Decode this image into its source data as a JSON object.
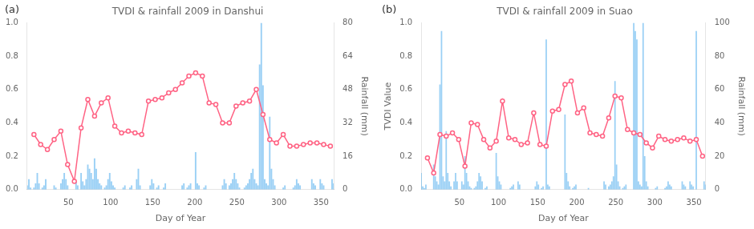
{
  "chart_data": [
    {
      "type": "bar",
      "title": "TVDI & rainfall 2009 in Danshui",
      "annotations": [
        "(a)"
      ],
      "xlabel": "Day of Year",
      "y2label": "Rainfall (mm)",
      "xlim": [
        1,
        365
      ],
      "xticks": [
        50,
        100,
        150,
        200,
        250,
        300,
        350
      ],
      "ylim": [
        0,
        1
      ],
      "yticks": [
        {
          "value": 0,
          "label": "0.0"
        },
        0.2,
        0.4,
        0.6,
        0.8,
        {
          "value": 1.0,
          "label": "1.0"
        }
      ],
      "y2lim": [
        0,
        80
      ],
      "y2ticks": [
        0,
        16,
        32,
        48,
        64,
        80
      ],
      "grid": false,
      "series": [
        {
          "type": "bar",
          "axis": "y2",
          "x": [
            1,
            3,
            5,
            7,
            9,
            11,
            13,
            15,
            17,
            19,
            21,
            23,
            25,
            27,
            29,
            31,
            33,
            35,
            37,
            39,
            41,
            43,
            45,
            47,
            49,
            51,
            53,
            55,
            57,
            59,
            61,
            63,
            65,
            67,
            69,
            71,
            73,
            75,
            77,
            79,
            81,
            83,
            85,
            87,
            89,
            91,
            93,
            95,
            97,
            99,
            101,
            103,
            105,
            107,
            109,
            111,
            113,
            115,
            117,
            119,
            121,
            123,
            125,
            127,
            129,
            131,
            133,
            135,
            137,
            139,
            141,
            143,
            145,
            147,
            149,
            151,
            153,
            155,
            157,
            159,
            161,
            163,
            165,
            167,
            169,
            171,
            173,
            175,
            177,
            179,
            181,
            183,
            185,
            187,
            189,
            191,
            193,
            195,
            197,
            199,
            201,
            203,
            205,
            207,
            209,
            211,
            213,
            215,
            217,
            219,
            221,
            223,
            225,
            227,
            229,
            231,
            233,
            235,
            237,
            239,
            241,
            243,
            245,
            247,
            249,
            251,
            253,
            255,
            257,
            259,
            261,
            263,
            265,
            267,
            269,
            271,
            273,
            275,
            277,
            279,
            281,
            283,
            285,
            287,
            289,
            291,
            293,
            295,
            297,
            299,
            301,
            303,
            305,
            307,
            309,
            311,
            313,
            315,
            317,
            319,
            321,
            323,
            325,
            327,
            329,
            331,
            333,
            335,
            337,
            339,
            341,
            343,
            345,
            347,
            349,
            351,
            353,
            355,
            357,
            359,
            361,
            363,
            365
          ],
          "values": [
            2,
            5,
            1,
            0,
            1,
            3,
            8,
            3,
            0,
            1,
            2,
            5,
            0,
            0,
            0,
            0,
            2,
            1,
            0,
            0,
            3,
            5,
            8,
            5,
            2,
            0,
            0,
            0,
            0,
            4,
            2,
            0,
            8,
            4,
            2,
            5,
            12,
            10,
            8,
            5,
            15,
            10,
            5,
            3,
            2,
            0,
            1,
            2,
            5,
            8,
            4,
            2,
            1,
            0,
            0,
            0,
            0,
            1,
            2,
            0,
            0,
            1,
            2,
            0,
            0,
            5,
            10,
            2,
            0,
            0,
            0,
            0,
            0,
            2,
            5,
            3,
            0,
            1,
            2,
            0,
            0,
            1,
            3,
            0,
            0,
            0,
            0,
            0,
            0,
            0,
            0,
            0,
            2,
            3,
            0,
            1,
            2,
            3,
            0,
            0,
            18,
            3,
            2,
            0,
            0,
            1,
            2,
            0,
            0,
            0,
            0,
            0,
            0,
            0,
            0,
            0,
            2,
            5,
            3,
            0,
            2,
            3,
            5,
            8,
            5,
            3,
            1,
            0,
            0,
            1,
            2,
            3,
            5,
            8,
            10,
            5,
            3,
            2,
            60,
            80,
            50,
            5,
            3,
            2,
            35,
            10,
            5,
            2,
            0,
            0,
            0,
            0,
            1,
            2,
            0,
            0,
            0,
            0,
            1,
            2,
            5,
            3,
            2,
            0,
            0,
            0,
            0,
            0,
            0,
            5,
            3,
            2,
            0,
            0,
            5,
            3,
            2,
            0,
            0,
            0,
            0,
            5,
            3
          ]
        },
        {
          "type": "line",
          "marker": "circle",
          "line_style": "solid",
          "x": [
            9,
            17,
            25,
            33,
            41,
            49,
            57,
            65,
            73,
            81,
            89,
            97,
            105,
            113,
            121,
            129,
            137,
            145,
            153,
            161,
            169,
            177,
            185,
            193,
            201,
            209,
            217,
            225,
            233,
            241,
            249,
            257,
            265,
            273,
            281,
            289,
            297,
            305,
            313,
            321,
            329,
            337,
            345,
            353,
            361
          ],
          "values": [
            0.33,
            0.27,
            0.24,
            0.3,
            0.35,
            0.15,
            0.05,
            0.37,
            0.54,
            0.44,
            0.52,
            0.55,
            0.38,
            0.34,
            0.35,
            0.34,
            0.33,
            0.53,
            0.54,
            0.55,
            0.58,
            0.6,
            0.64,
            0.68,
            0.7,
            0.68,
            0.52,
            0.51,
            0.4,
            0.4,
            0.5,
            0.52,
            0.53,
            0.6,
            0.45,
            0.3,
            0.28,
            0.33,
            0.26,
            0.26,
            0.27,
            0.28,
            0.28,
            0.27,
            0.26
          ]
        }
      ]
    },
    {
      "type": "bar",
      "title": "TVDI & rainfall 2009 in Suao",
      "annotations": [
        "(b)"
      ],
      "xlabel": "Day of Year",
      "ylabel": "TVDI Value",
      "y2label": "Rainfall (mm)",
      "xlim": [
        1,
        365
      ],
      "xticks": [
        50,
        100,
        150,
        200,
        250,
        300,
        350
      ],
      "ylim": [
        0,
        1
      ],
      "yticks": [
        {
          "value": 0,
          "label": "0.0"
        },
        0.2,
        0.4,
        0.6,
        0.8,
        {
          "value": 1.0,
          "label": "1.0"
        }
      ],
      "y2lim": [
        0,
        100
      ],
      "y2ticks": [
        0,
        20,
        40,
        60,
        80,
        100
      ],
      "grid": false,
      "series": [
        {
          "type": "bar",
          "axis": "y2",
          "x": [
            1,
            3,
            5,
            7,
            9,
            11,
            13,
            15,
            17,
            19,
            21,
            23,
            25,
            27,
            29,
            31,
            33,
            35,
            37,
            39,
            41,
            43,
            45,
            47,
            49,
            51,
            53,
            55,
            57,
            59,
            61,
            63,
            65,
            67,
            69,
            71,
            73,
            75,
            77,
            79,
            81,
            83,
            85,
            87,
            89,
            91,
            93,
            95,
            97,
            99,
            101,
            103,
            105,
            107,
            109,
            111,
            113,
            115,
            117,
            119,
            121,
            123,
            125,
            127,
            129,
            131,
            133,
            135,
            137,
            139,
            141,
            143,
            145,
            147,
            149,
            151,
            153,
            155,
            157,
            159,
            161,
            163,
            165,
            167,
            169,
            171,
            173,
            175,
            177,
            179,
            181,
            183,
            185,
            187,
            189,
            191,
            193,
            195,
            197,
            199,
            201,
            203,
            205,
            207,
            209,
            211,
            213,
            215,
            217,
            219,
            221,
            223,
            225,
            227,
            229,
            231,
            233,
            235,
            237,
            239,
            241,
            243,
            245,
            247,
            249,
            251,
            253,
            255,
            257,
            259,
            261,
            263,
            265,
            267,
            269,
            271,
            273,
            275,
            277,
            279,
            281,
            283,
            285,
            287,
            289,
            291,
            293,
            295,
            297,
            299,
            301,
            303,
            305,
            307,
            309,
            311,
            313,
            315,
            317,
            319,
            321,
            323,
            325,
            327,
            329,
            331,
            333,
            335,
            337,
            339,
            341,
            343,
            345,
            347,
            349,
            351,
            353,
            355,
            357,
            359,
            361,
            363,
            365
          ],
          "values": [
            10,
            2,
            1,
            3,
            0,
            0,
            0,
            0,
            15,
            8,
            5,
            3,
            63,
            95,
            8,
            5,
            35,
            10,
            5,
            2,
            0,
            5,
            10,
            5,
            0,
            0,
            5,
            3,
            20,
            10,
            5,
            2,
            1,
            0,
            1,
            2,
            5,
            10,
            8,
            5,
            0,
            1,
            2,
            0,
            0,
            0,
            0,
            0,
            22,
            8,
            5,
            3,
            0,
            0,
            0,
            0,
            0,
            1,
            2,
            3,
            0,
            0,
            5,
            3,
            0,
            0,
            0,
            0,
            0,
            0,
            0,
            0,
            0,
            2,
            5,
            3,
            0,
            1,
            2,
            0,
            90,
            3,
            2,
            0,
            0,
            0,
            0,
            0,
            0,
            0,
            0,
            0,
            45,
            10,
            5,
            2,
            0,
            1,
            2,
            3,
            0,
            0,
            0,
            0,
            0,
            0,
            0,
            1,
            0,
            0,
            0,
            0,
            0,
            0,
            0,
            0,
            0,
            5,
            3,
            0,
            2,
            3,
            5,
            8,
            65,
            15,
            5,
            2,
            0,
            1,
            2,
            3,
            0,
            0,
            0,
            0,
            100,
            95,
            90,
            5,
            3,
            2,
            100,
            20,
            5,
            2,
            0,
            0,
            0,
            0,
            1,
            2,
            0,
            0,
            0,
            0,
            1,
            2,
            5,
            3,
            2,
            0,
            0,
            0,
            0,
            0,
            0,
            5,
            3,
            2,
            0,
            0,
            5,
            3,
            2,
            0,
            95,
            0,
            0,
            0,
            0,
            5,
            3
          ]
        },
        {
          "type": "line",
          "marker": "circle",
          "line_style": "solid",
          "x": [
            9,
            17,
            25,
            33,
            41,
            49,
            57,
            65,
            73,
            81,
            89,
            97,
            105,
            113,
            121,
            129,
            137,
            145,
            153,
            161,
            169,
            177,
            185,
            193,
            201,
            209,
            217,
            225,
            233,
            241,
            249,
            257,
            265,
            273,
            281,
            289,
            297,
            305,
            313,
            321,
            329,
            337,
            345,
            353,
            361
          ],
          "values": [
            0.19,
            0.1,
            0.33,
            0.32,
            0.34,
            0.3,
            0.14,
            0.4,
            0.39,
            0.3,
            0.25,
            0.29,
            0.53,
            0.31,
            0.3,
            0.27,
            0.28,
            0.46,
            0.27,
            0.26,
            0.47,
            0.48,
            0.63,
            0.65,
            0.46,
            0.49,
            0.34,
            0.33,
            0.32,
            0.43,
            0.56,
            0.55,
            0.36,
            0.34,
            0.33,
            0.28,
            0.25,
            0.32,
            0.3,
            0.29,
            0.3,
            0.31,
            0.29,
            0.3,
            0.2
          ]
        }
      ]
    }
  ]
}
